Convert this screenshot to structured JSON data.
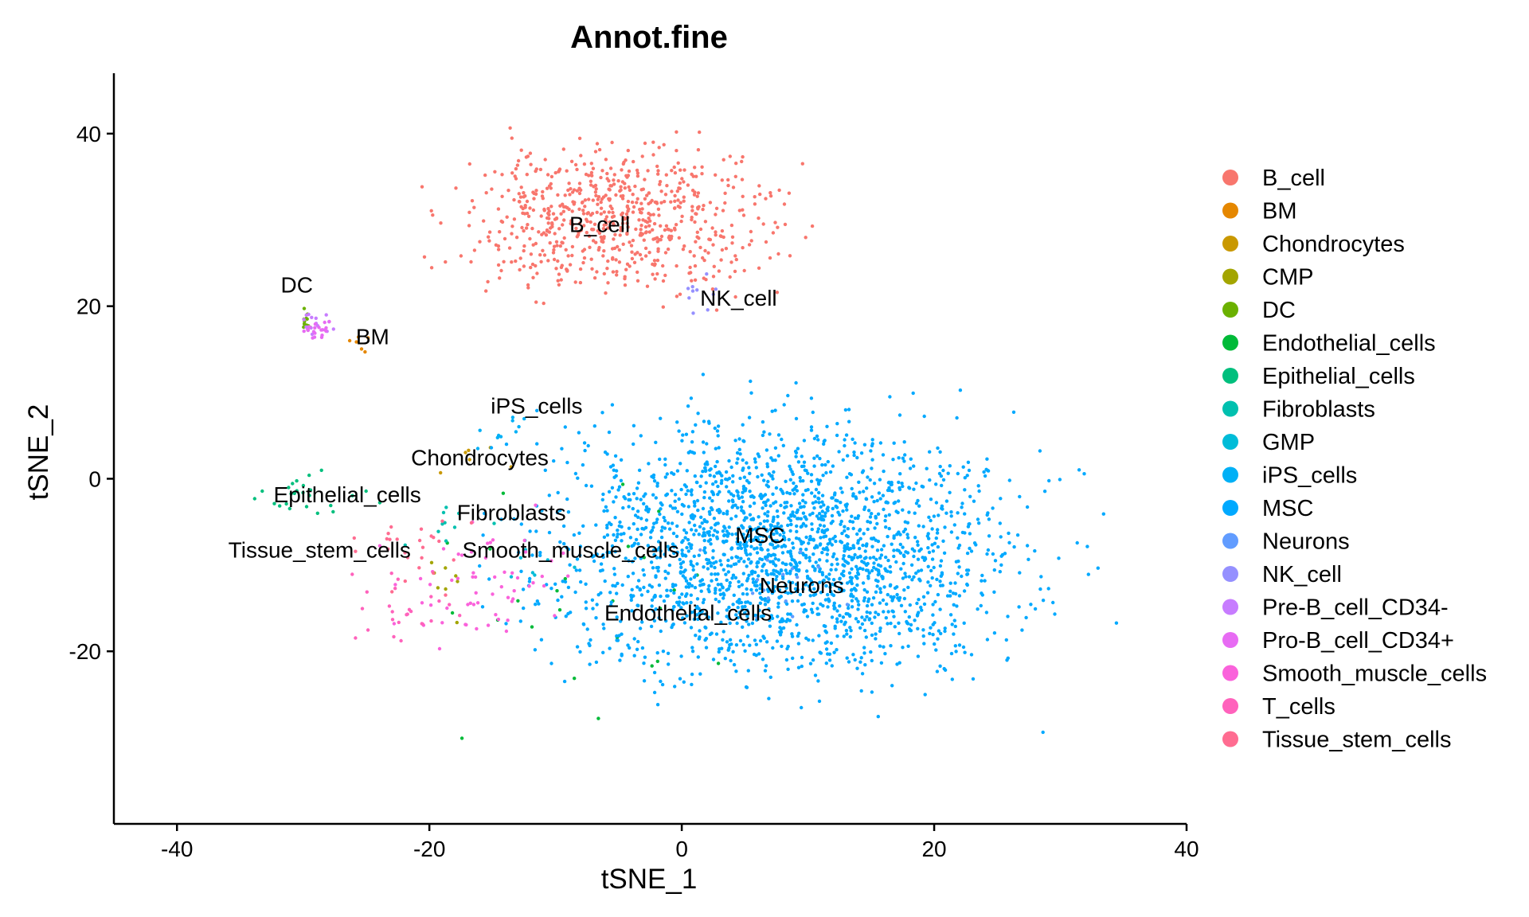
{
  "chart_data": {
    "type": "scatter",
    "title": "Annot.fine",
    "xlabel": "tSNE_1",
    "ylabel": "tSNE_2",
    "xlim": [
      -45,
      40
    ],
    "ylim": [
      -40,
      47
    ],
    "xticks": [
      -40,
      -20,
      0,
      20,
      40
    ],
    "xtick_labels": [
      "-40",
      "-20",
      "0",
      "20",
      "40"
    ],
    "yticks": [
      -20,
      0,
      20,
      40
    ],
    "ytick_labels": [
      "-20",
      "0",
      "20",
      "40"
    ],
    "grid": false,
    "legend_position": "right",
    "series": [
      {
        "name": "B_cell",
        "color": "#F8766D",
        "center": [
          -5,
          30
        ],
        "spread": [
          10,
          7
        ],
        "count": 700
      },
      {
        "name": "BM",
        "color": "#E58700",
        "center": [
          -26,
          16
        ],
        "spread": [
          1,
          1
        ],
        "count": 6
      },
      {
        "name": "Chondrocytes",
        "color": "#C99800",
        "center": [
          -16,
          3
        ],
        "spread": [
          3,
          2
        ],
        "count": 6
      },
      {
        "name": "CMP",
        "color": "#A3A500",
        "center": [
          -20,
          -12
        ],
        "spread": [
          3,
          3
        ],
        "count": 8
      },
      {
        "name": "DC",
        "color": "#6BB100",
        "center": [
          -30,
          18
        ],
        "spread": [
          1,
          1
        ],
        "count": 12
      },
      {
        "name": "Endothelial_cells",
        "color": "#00BA38",
        "center": [
          -5,
          -15
        ],
        "spread": [
          12,
          10
        ],
        "count": 25
      },
      {
        "name": "Epithelial_cells",
        "color": "#00BF7D",
        "center": [
          -30,
          -2
        ],
        "spread": [
          5,
          3
        ],
        "count": 25
      },
      {
        "name": "Fibroblasts",
        "color": "#00C0AF",
        "center": [
          -18,
          -5
        ],
        "spread": [
          3,
          3
        ],
        "count": 10
      },
      {
        "name": "GMP",
        "color": "#00BCD8",
        "center": [
          -12,
          -10
        ],
        "spread": [
          3,
          3
        ],
        "count": 8
      },
      {
        "name": "iPS_cells",
        "color": "#00B0F6",
        "center": [
          -14,
          5
        ],
        "spread": [
          2,
          2
        ],
        "count": 10
      },
      {
        "name": "MSC",
        "color": "#00A9FF",
        "center": [
          8,
          -8
        ],
        "spread": [
          15,
          12
        ],
        "count": 2200
      },
      {
        "name": "Neurons",
        "color": "#619CFF",
        "center": [
          8,
          -12
        ],
        "spread": [
          6,
          4
        ],
        "count": 15
      },
      {
        "name": "NK_cell",
        "color": "#9590FF",
        "center": [
          2,
          22
        ],
        "spread": [
          2,
          2
        ],
        "count": 10
      },
      {
        "name": "Pre-B_cell_CD34-",
        "color": "#C77CFF",
        "center": [
          -29,
          18
        ],
        "spread": [
          1,
          1
        ],
        "count": 15
      },
      {
        "name": "Pro-B_cell_CD34+",
        "color": "#E76BF3",
        "center": [
          -29,
          17
        ],
        "spread": [
          1,
          1
        ],
        "count": 20
      },
      {
        "name": "Smooth_muscle_cells",
        "color": "#FA62DB",
        "center": [
          -15,
          -12
        ],
        "spread": [
          6,
          6
        ],
        "count": 60
      },
      {
        "name": "T_cells",
        "color": "#FF62BC",
        "center": [
          -22,
          -15
        ],
        "spread": [
          4,
          4
        ],
        "count": 25
      },
      {
        "name": "Tissue_stem_cells",
        "color": "#FF6C91",
        "center": [
          -22,
          -8
        ],
        "spread": [
          4,
          4
        ],
        "count": 25
      }
    ],
    "cluster_labels": [
      {
        "text": "B_cell",
        "x": -6.5,
        "y": 29.5
      },
      {
        "text": "DC",
        "x": -30.5,
        "y": 22.5
      },
      {
        "text": "BM",
        "x": -24.5,
        "y": 16.5
      },
      {
        "text": "NK_cell",
        "x": 4.5,
        "y": 21
      },
      {
        "text": "iPS_cells",
        "x": -11.5,
        "y": 8.5
      },
      {
        "text": "Chondrocytes",
        "x": -16,
        "y": 2.5
      },
      {
        "text": "Epithelial_cells",
        "x": -26.5,
        "y": -1.8
      },
      {
        "text": "Fibroblasts",
        "x": -13.5,
        "y": -3.9
      },
      {
        "text": "Tissue_stem_cells",
        "x": -28.7,
        "y": -8.2
      },
      {
        "text": "Smooth_muscle_cells",
        "x": -8.8,
        "y": -8.2
      },
      {
        "text": "MSC",
        "x": 6.2,
        "y": -6.5
      },
      {
        "text": "Neurons",
        "x": 9.5,
        "y": -12.3
      },
      {
        "text": "Endothelial_cells",
        "x": 0.5,
        "y": -15.5
      }
    ]
  }
}
